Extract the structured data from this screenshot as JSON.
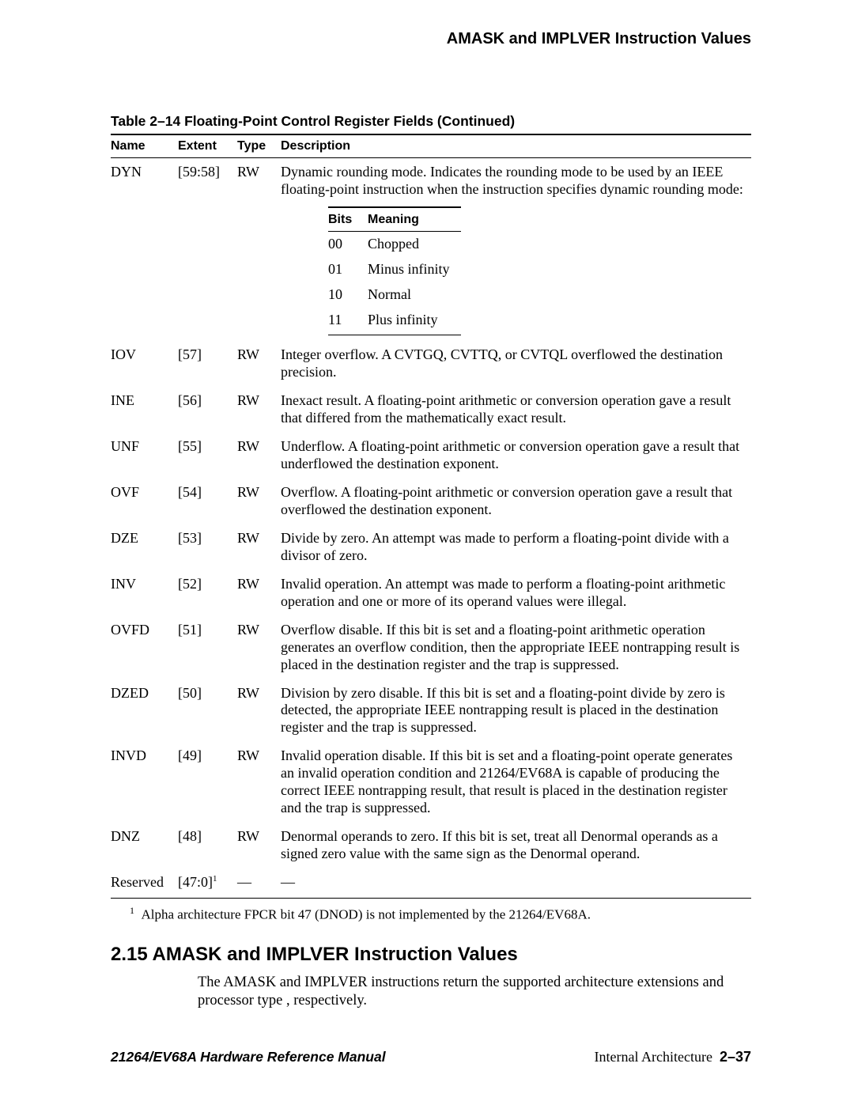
{
  "running_head": "AMASK and IMPLVER Instruction Values",
  "table": {
    "caption": "Table 2–14  Floating-Point Control Register Fields (Continued)",
    "headers": {
      "name": "Name",
      "extent": "Extent",
      "type": "Type",
      "desc": "Description"
    },
    "dyn": {
      "name": "DYN",
      "extent": "[59:58]",
      "type": "RW",
      "desc_intro": "Dynamic rounding mode. Indicates the rounding mode to be used by an IEEE floating-point instruction when the instruction specifies dynamic rounding mode:",
      "inner_headers": {
        "bits": "Bits",
        "meaning": "Meaning"
      },
      "inner_rows": [
        {
          "bits": "00",
          "meaning": "Chopped"
        },
        {
          "bits": "01",
          "meaning": "Minus infinity"
        },
        {
          "bits": "10",
          "meaning": "Normal"
        },
        {
          "bits": "11",
          "meaning": "Plus infinity"
        }
      ]
    },
    "rows": [
      {
        "name": "IOV",
        "extent": "[57]",
        "type": "RW",
        "desc": "Integer overflow. A CVTGQ, CVTTQ, or CVTQL overflowed the destination precision."
      },
      {
        "name": "INE",
        "extent": "[56]",
        "type": "RW",
        "desc": "Inexact result. A floating-point arithmetic or conversion operation gave a result that differed from the mathematically exact result."
      },
      {
        "name": "UNF",
        "extent": "[55]",
        "type": "RW",
        "desc": "Underflow. A floating-point arithmetic or conversion operation gave a result that underflowed the destination exponent."
      },
      {
        "name": "OVF",
        "extent": "[54]",
        "type": "RW",
        "desc": "Overflow. A floating-point arithmetic or conversion operation gave a result that overflowed the destination exponent."
      },
      {
        "name": "DZE",
        "extent": "[53]",
        "type": "RW",
        "desc": "Divide by zero. An attempt was made to perform a floating-point divide with a divisor of zero."
      },
      {
        "name": "INV",
        "extent": "[52]",
        "type": "RW",
        "desc": "Invalid operation. An attempt was made to perform a floating-point arithmetic operation and one or more of its operand values were illegal."
      },
      {
        "name": "OVFD",
        "extent": "[51]",
        "type": "RW",
        "desc": "Overflow disable. If this bit is set and a floating-point arithmetic operation generates an overflow condition, then the appropriate IEEE nontrapping result is placed in the destination register and the trap is suppressed."
      },
      {
        "name": "DZED",
        "extent": "[50]",
        "type": "RW",
        "desc": "Division by zero disable. If this bit is set and a floating-point divide by zero is detected, the appropriate IEEE nontrapping result is placed in the destination register and the trap is suppressed."
      },
      {
        "name": "INVD",
        "extent": "[49]",
        "type": "RW",
        "desc": "Invalid operation disable. If this bit is set and a floating-point operate generates an invalid operation condition and 21264/EV68A is capable of producing the correct IEEE nontrapping result, that result is placed in the destination register and the trap is suppressed."
      },
      {
        "name": "DNZ",
        "extent": "[48]",
        "type": "RW",
        "desc": "Denormal operands to zero. If this bit is set, treat all Denormal operands as a signed zero value with the same sign as the Denormal operand."
      }
    ],
    "reserved": {
      "name": "Reserved",
      "extent_base": "[47:0]",
      "extent_sup": "1",
      "type": "—",
      "desc": "—"
    }
  },
  "footnote": {
    "marker": "1",
    "text": "Alpha architecture FPCR bit 47 (DNOD) is not implemented by the 21264/EV68A."
  },
  "section": {
    "number_title": "2.15  AMASK and IMPLVER Instruction Values",
    "body": "The AMASK and IMPLVER instructions return the supported architecture extensions and processor type , respectively."
  },
  "footer": {
    "left": "21264/EV68A Hardware Reference Manual",
    "right_label": "Internal Architecture",
    "right_page": "2–37"
  }
}
